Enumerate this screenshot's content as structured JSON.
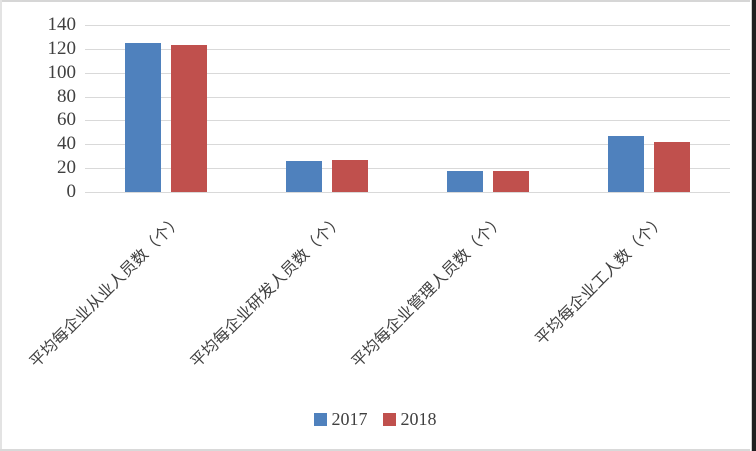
{
  "chart_data": {
    "type": "bar",
    "title": "",
    "xlabel": "",
    "ylabel": "",
    "categories": [
      "平均每企业从业人员数（个）",
      "平均每企业研发人员数（个）",
      "平均每企业管理人员数（个）",
      "平均每企业工人数（个）"
    ],
    "series": [
      {
        "name": "2017",
        "color": "#4F81BD",
        "values": [
          125,
          26,
          18,
          47
        ]
      },
      {
        "name": "2018",
        "color": "#C0504D",
        "values": [
          123,
          27,
          18,
          42
        ]
      }
    ],
    "ylim": [
      0,
      140
    ],
    "yticks": [
      0,
      20,
      40,
      60,
      80,
      100,
      120,
      140
    ],
    "grid": true,
    "gridline_color": "#D9D9D9",
    "tick_label_color": "#404040",
    "legend_position": "bottom",
    "legend_labels": [
      "2017",
      "2018"
    ]
  }
}
